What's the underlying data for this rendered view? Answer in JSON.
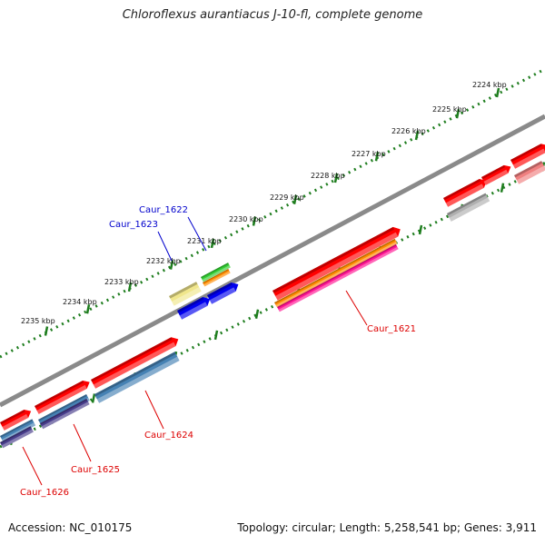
{
  "title": "Chloroflexus aurantiacus J-10-fl, complete genome",
  "footer": {
    "accession": "Accession: NC_010175",
    "summary": "Topology: circular; Length: 5,258,541 bp; Genes: 3,911"
  },
  "kbp_labels": [
    "2224 kbp",
    "2225 kbp",
    "2226 kbp",
    "2227 kbp",
    "2228 kbp",
    "2229 kbp",
    "2230 kbp",
    "2231 kbp",
    "2232 kbp",
    "2233 kbp",
    "2234 kbp",
    "2235 kbp"
  ],
  "gene_labels": {
    "caur_1621": "Caur_1621",
    "caur_1622": "Caur_1622",
    "caur_1623": "Caur_1623",
    "caur_1624": "Caur_1624",
    "caur_1625": "Caur_1625",
    "caur_1626": "Caur_1626"
  },
  "colors": {
    "backbone": "#8a8a8a",
    "ticks": "#1e7d1e",
    "gene_red": "#ff0000",
    "gene_orange": "#ff8c00",
    "gene_magenta": "#ff1493",
    "gene_steelblue": "#4682b4",
    "gene_darkslate": "#483d8b",
    "gene_blue": "#0000ee",
    "gene_green": "#32cd32",
    "gene_khaki": "#f0e68c",
    "gene_grey": "#b0b0b0",
    "gene_pink": "#f08080",
    "label_red": "#dd0000",
    "label_blue": "#0000cc"
  }
}
